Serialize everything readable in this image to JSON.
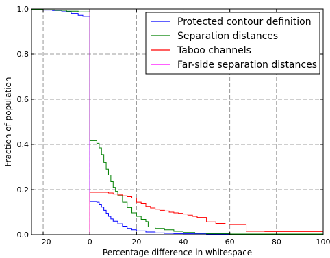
{
  "chart_data": {
    "type": "line",
    "xlabel": "Percentage difference in whitespace",
    "ylabel": "Fraction of population",
    "xlim": [
      -25,
      100
    ],
    "ylim": [
      0.0,
      1.0
    ],
    "x_ticks": [
      -20,
      0,
      20,
      40,
      60,
      80,
      100
    ],
    "x_tick_labels": [
      "−20",
      "0",
      "20",
      "40",
      "60",
      "80",
      "100"
    ],
    "y_ticks": [
      0.0,
      0.2,
      0.4,
      0.6,
      0.8,
      1.0
    ],
    "y_tick_labels": [
      "0.0",
      "0.2",
      "0.4",
      "0.6",
      "0.8",
      "1.0"
    ],
    "grid": true,
    "legend_position": "top-right",
    "series": [
      {
        "name": "Protected contour definition",
        "color": "#0000ff",
        "points": [
          [
            -25,
            0.997
          ],
          [
            -20,
            0.995
          ],
          [
            -16,
            0.993
          ],
          [
            -12,
            0.988
          ],
          [
            -8,
            0.98
          ],
          [
            -5,
            0.972
          ],
          [
            -3,
            0.967
          ],
          [
            0,
            0.966
          ],
          [
            0,
            0.148
          ],
          [
            2,
            0.148
          ],
          [
            3,
            0.145
          ],
          [
            4,
            0.135
          ],
          [
            5,
            0.122
          ],
          [
            6,
            0.108
          ],
          [
            7,
            0.095
          ],
          [
            8,
            0.082
          ],
          [
            9,
            0.07
          ],
          [
            10,
            0.06
          ],
          [
            12,
            0.048
          ],
          [
            14,
            0.038
          ],
          [
            16,
            0.028
          ],
          [
            18,
            0.022
          ],
          [
            20,
            0.017
          ],
          [
            24,
            0.012
          ],
          [
            28,
            0.008
          ],
          [
            32,
            0.006
          ],
          [
            36,
            0.005
          ],
          [
            40,
            0.004
          ],
          [
            50,
            0.003
          ],
          [
            60,
            0.002
          ],
          [
            100,
            0.002
          ]
        ]
      },
      {
        "name": "Separation distances",
        "color": "#008000",
        "points": [
          [
            -25,
            0.997
          ],
          [
            -20,
            0.996
          ],
          [
            -15,
            0.994
          ],
          [
            -10,
            0.99
          ],
          [
            -5,
            0.987
          ],
          [
            0,
            0.986
          ],
          [
            0,
            0.417
          ],
          [
            2,
            0.417
          ],
          [
            3,
            0.405
          ],
          [
            4,
            0.385
          ],
          [
            5,
            0.355
          ],
          [
            6,
            0.32
          ],
          [
            7,
            0.29
          ],
          [
            8,
            0.265
          ],
          [
            9,
            0.235
          ],
          [
            10,
            0.21
          ],
          [
            11,
            0.192
          ],
          [
            12,
            0.175
          ],
          [
            14,
            0.145
          ],
          [
            16,
            0.12
          ],
          [
            18,
            0.097
          ],
          [
            20,
            0.082
          ],
          [
            22,
            0.068
          ],
          [
            24,
            0.058
          ],
          [
            25,
            0.035
          ],
          [
            28,
            0.028
          ],
          [
            32,
            0.022
          ],
          [
            36,
            0.015
          ],
          [
            40,
            0.01
          ],
          [
            45,
            0.007
          ],
          [
            50,
            0.005
          ],
          [
            60,
            0.003
          ],
          [
            100,
            0.002
          ]
        ]
      },
      {
        "name": "Taboo channels",
        "color": "#ff0000",
        "points": [
          [
            0,
            0.0
          ],
          [
            0,
            0.188
          ],
          [
            5,
            0.188
          ],
          [
            8,
            0.185
          ],
          [
            10,
            0.18
          ],
          [
            12,
            0.176
          ],
          [
            14,
            0.172
          ],
          [
            16,
            0.168
          ],
          [
            18,
            0.162
          ],
          [
            20,
            0.145
          ],
          [
            22,
            0.138
          ],
          [
            24,
            0.125
          ],
          [
            26,
            0.118
          ],
          [
            28,
            0.113
          ],
          [
            30,
            0.108
          ],
          [
            32,
            0.105
          ],
          [
            34,
            0.1
          ],
          [
            36,
            0.097
          ],
          [
            38,
            0.095
          ],
          [
            40,
            0.092
          ],
          [
            42,
            0.087
          ],
          [
            44,
            0.082
          ],
          [
            46,
            0.077
          ],
          [
            50,
            0.057
          ],
          [
            54,
            0.05
          ],
          [
            58,
            0.047
          ],
          [
            60,
            0.045
          ],
          [
            66,
            0.045
          ],
          [
            67,
            0.015
          ],
          [
            75,
            0.014
          ],
          [
            100,
            0.013
          ]
        ]
      },
      {
        "name": "Far-side separation distances",
        "color": "#ff00ff",
        "points": [
          [
            -25,
            0.0
          ],
          [
            0,
            0.0
          ],
          [
            0,
            1.0
          ],
          [
            0,
            0.0
          ],
          [
            100,
            0.0
          ]
        ]
      }
    ]
  }
}
